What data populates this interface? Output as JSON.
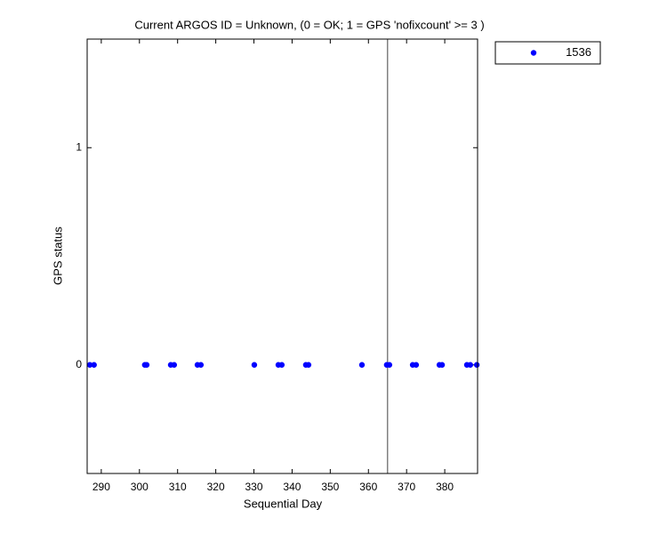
{
  "chart_data": {
    "type": "scatter",
    "title": "Current ARGOS ID = Unknown, (0 = OK; 1 = GPS 'nofixcount' >= 3 )",
    "x_label": "Sequential Day",
    "y_label": "GPS status",
    "xlim": [
      286.3,
      388.6
    ],
    "ylim": [
      -0.5,
      1.5
    ],
    "xticks": [
      290,
      300,
      310,
      320,
      330,
      340,
      350,
      360,
      370,
      380
    ],
    "yticks": [
      0,
      1
    ],
    "vline": 365,
    "vline_color": "#808080",
    "legend": "outside-top-right",
    "series": [
      {
        "name": "1536",
        "color": "#0000ff",
        "x": [
          287.0,
          288.1,
          301.4,
          301.9,
          308.2,
          309.1,
          315.2,
          316.1,
          330.1,
          336.4,
          337.3,
          343.6,
          344.3,
          358.3,
          364.8,
          365.5,
          371.6,
          372.5,
          378.6,
          379.3,
          385.8,
          386.7,
          388.4
        ],
        "values": [
          0,
          0,
          0,
          0,
          0,
          0,
          0,
          0,
          0,
          0,
          0,
          0,
          0,
          0,
          0,
          0,
          0,
          0,
          0,
          0,
          0,
          0,
          0
        ]
      }
    ]
  }
}
